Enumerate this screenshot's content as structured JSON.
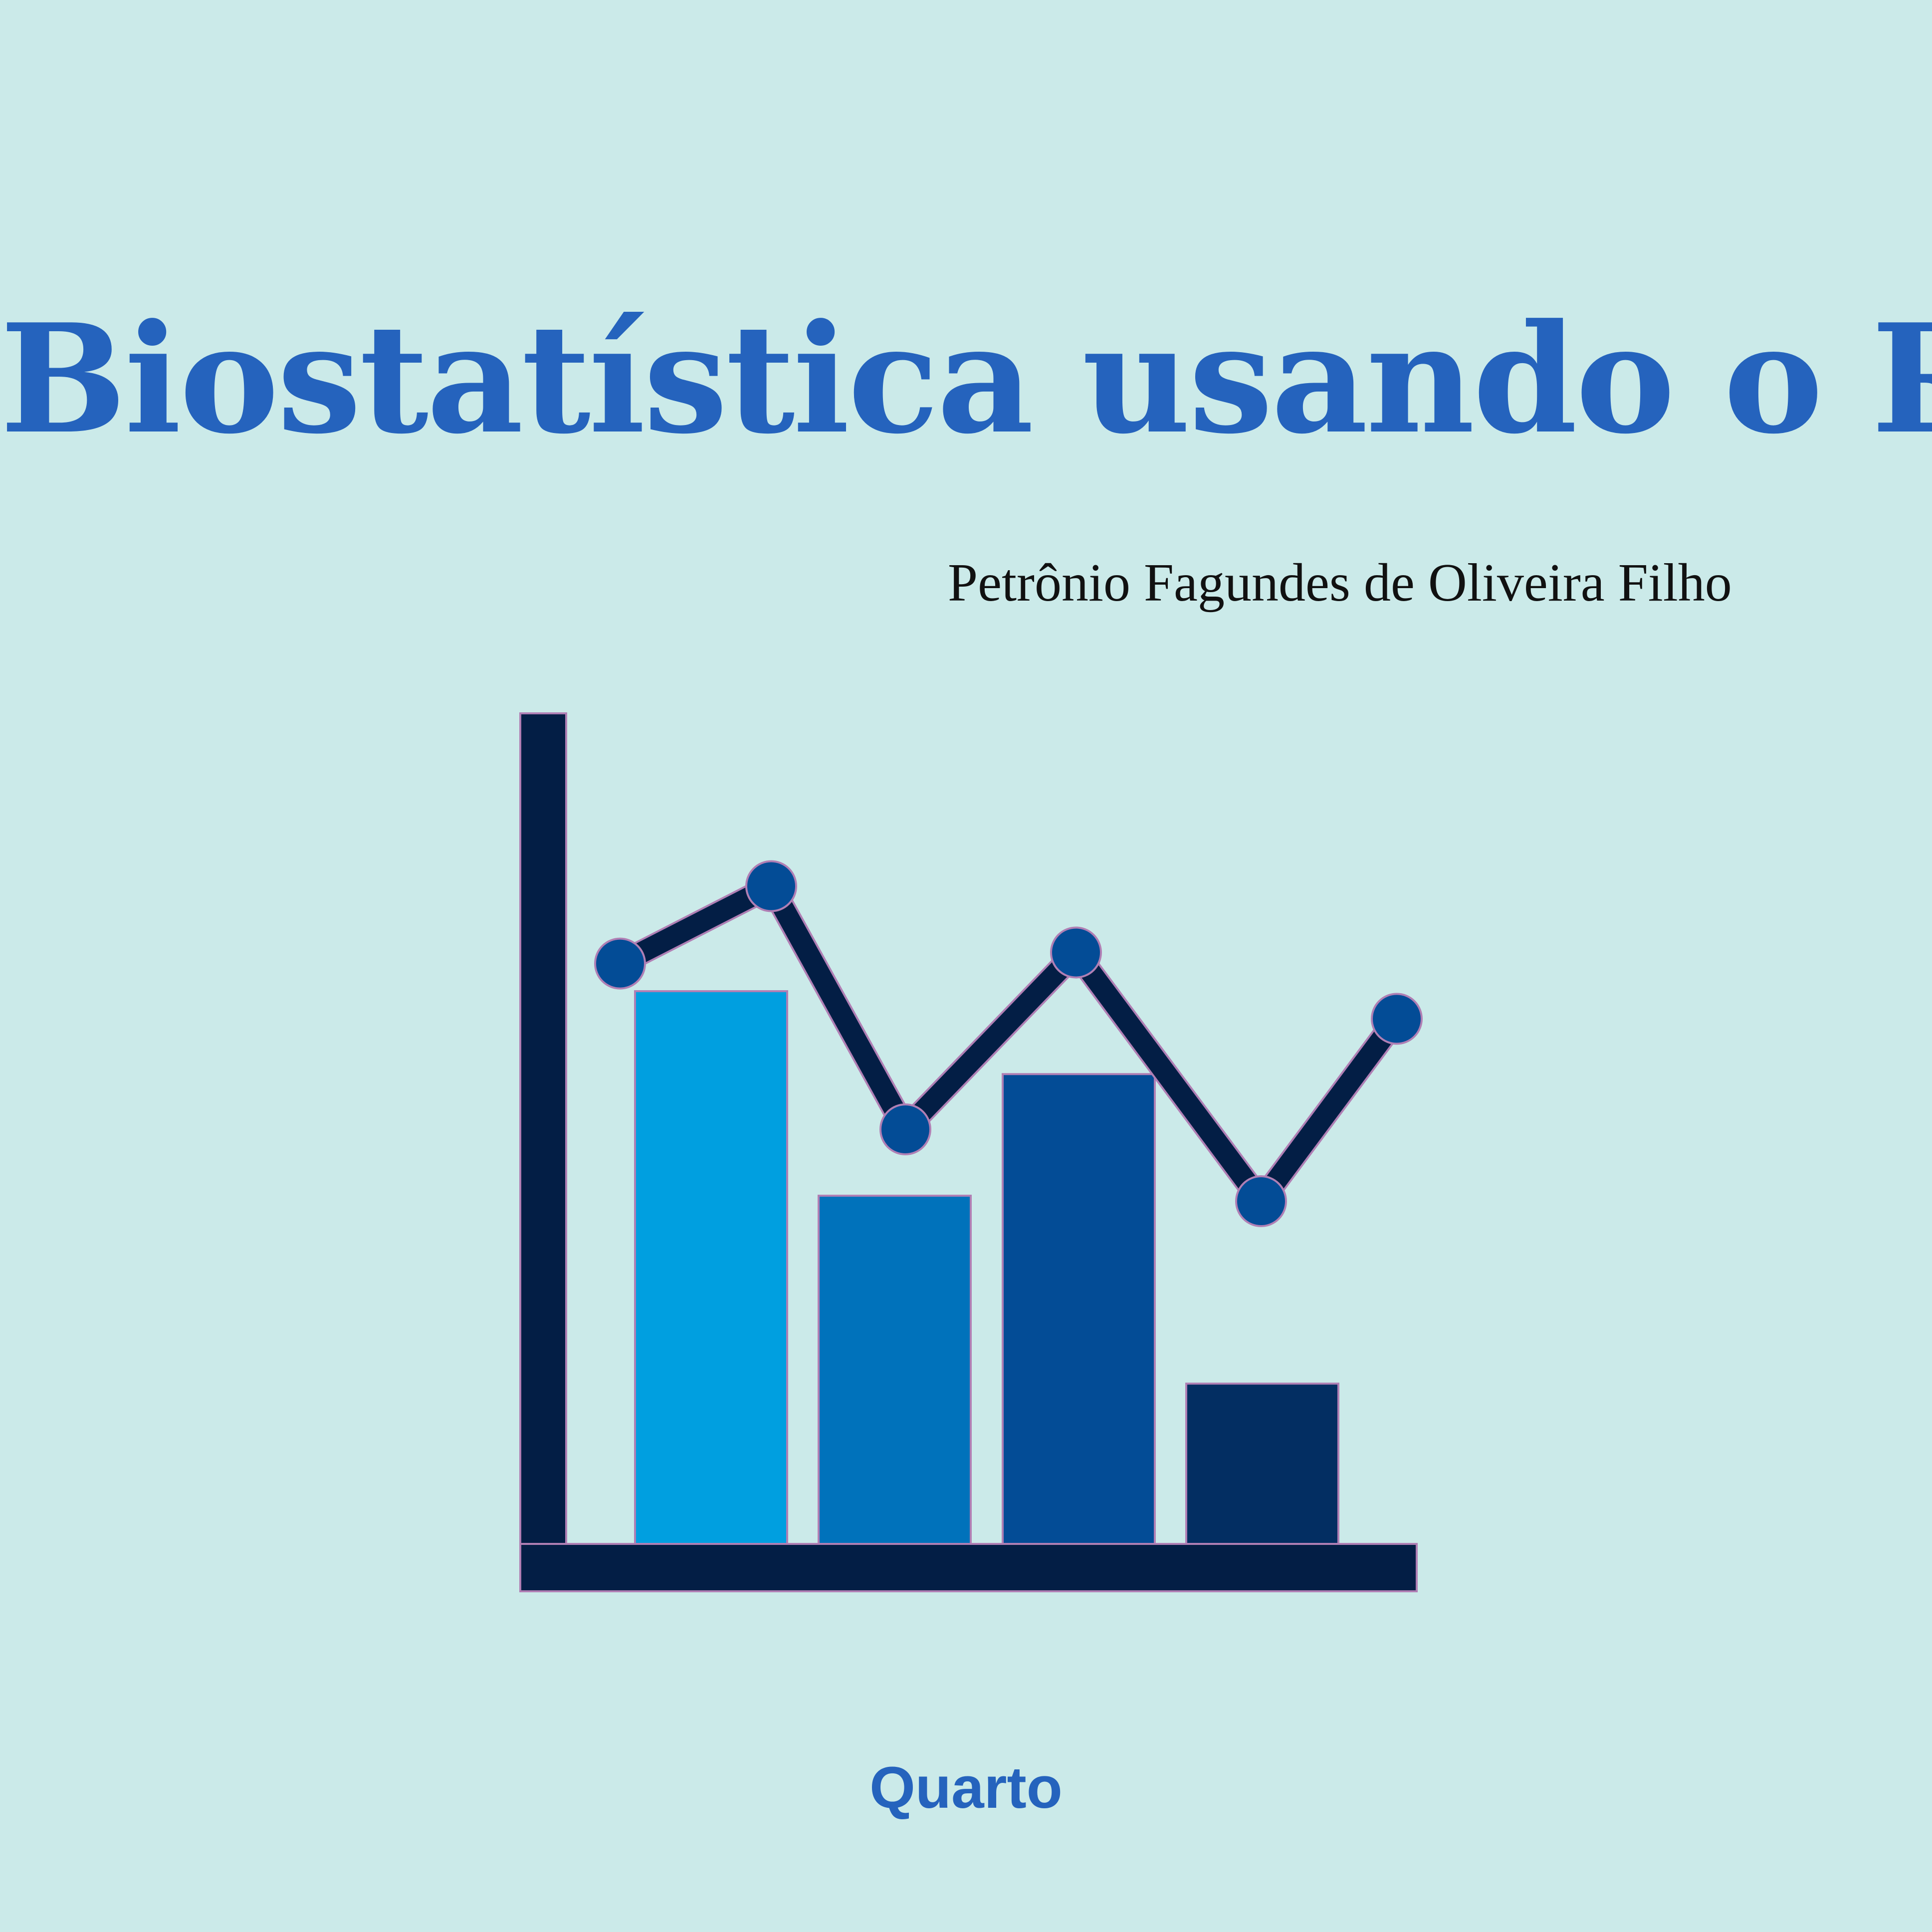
{
  "cover": {
    "title": "Biostatística usando o R",
    "author": "Petrônio Fagundes de Oliveira Filho",
    "publisher": "Quarto"
  },
  "colors": {
    "background": "#cbeae9",
    "title": "#2563bd",
    "axis": "#031e45",
    "outline": "#b07fb4",
    "marker": "#034c96",
    "bars": [
      "#009fe0",
      "#0072bb",
      "#034c96",
      "#032e62"
    ]
  },
  "illustration": {
    "icon": "bar-line-chart-icon",
    "bar_values": [
      100,
      63,
      85,
      29
    ],
    "line_values": [
      105,
      119,
      75,
      107,
      62,
      95
    ]
  }
}
